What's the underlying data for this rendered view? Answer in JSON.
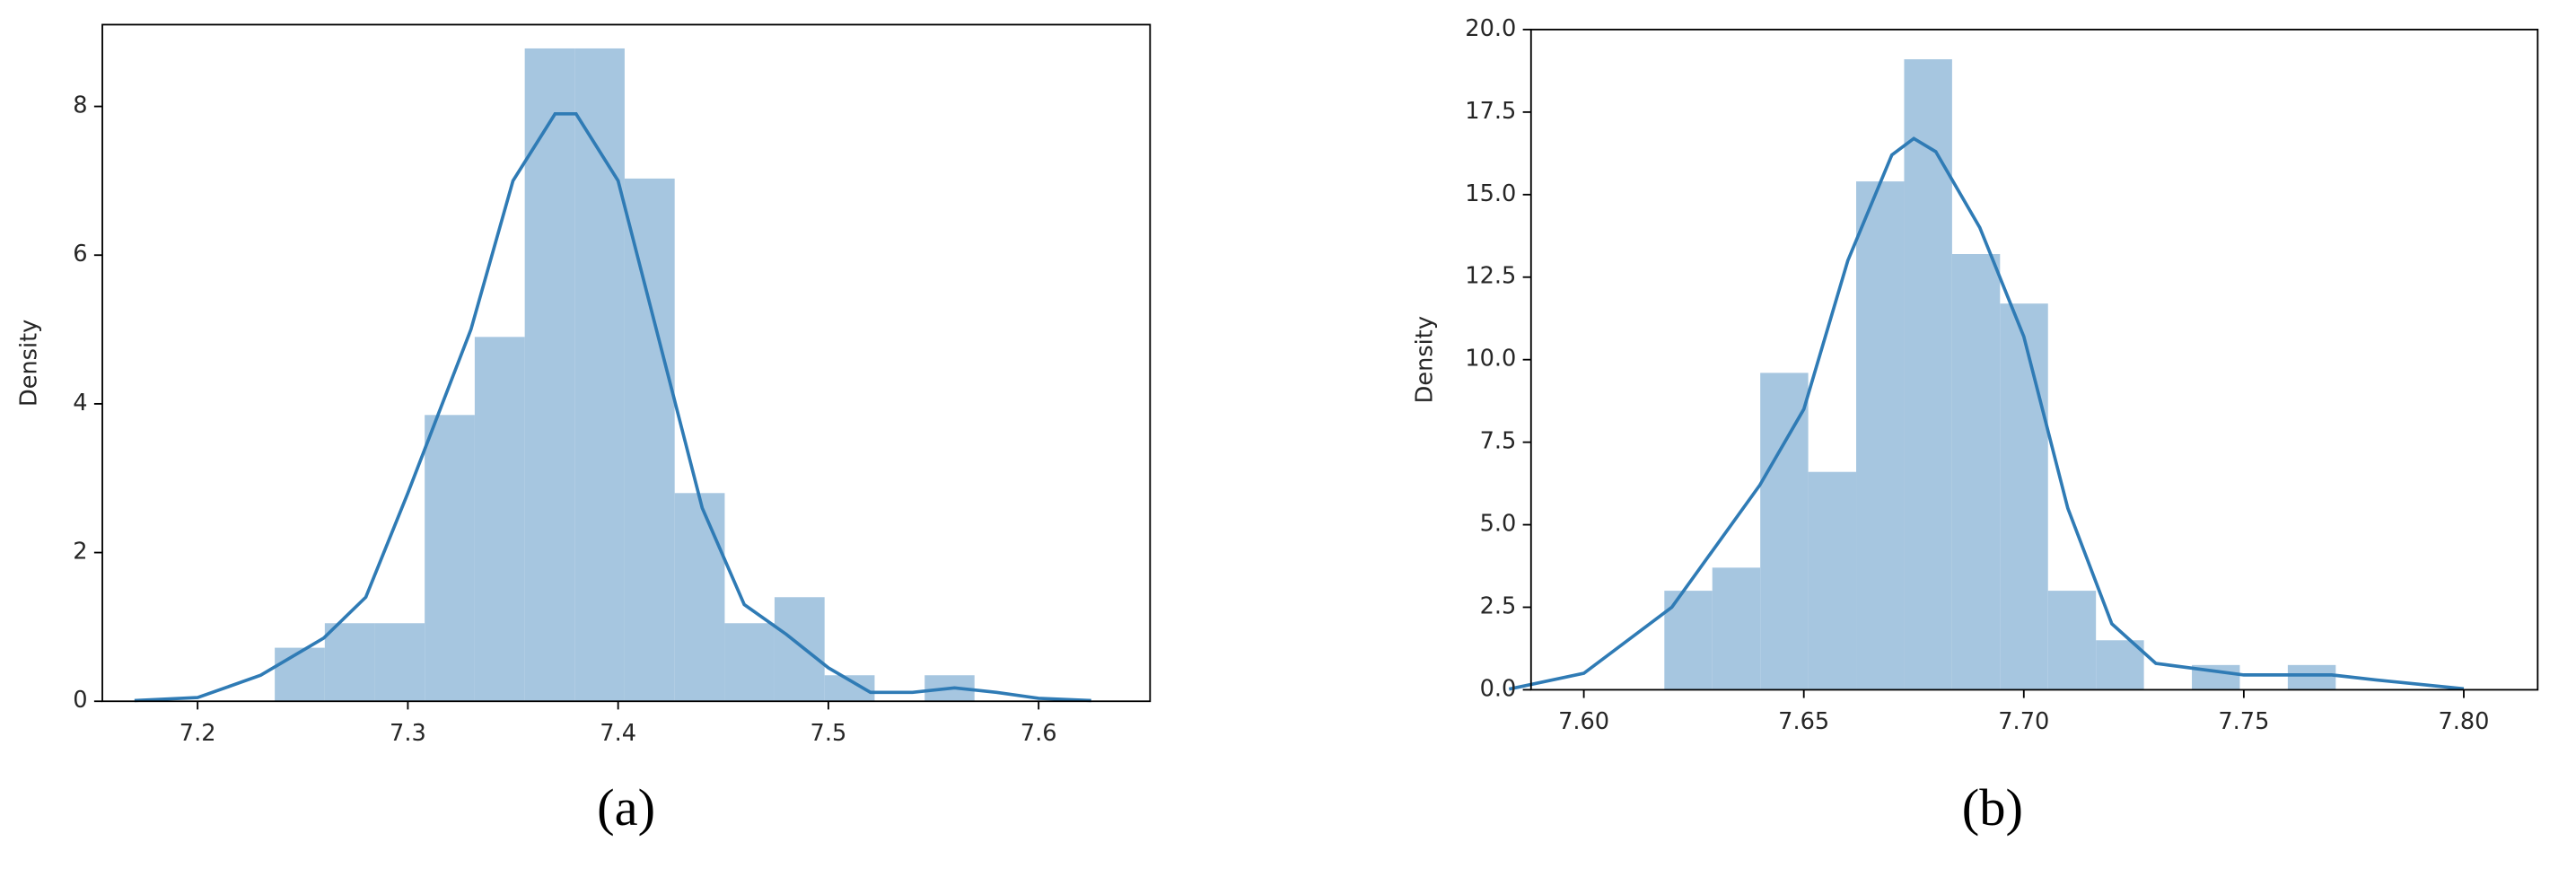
{
  "chart_data": [
    {
      "type": "histogram",
      "y_label": "Density",
      "caption": "(a)",
      "bins": [
        7.2367,
        7.2605,
        7.2842,
        7.308,
        7.3318,
        7.3556,
        7.3793,
        7.4031,
        7.4269,
        7.4507,
        7.4744,
        7.4982,
        7.522,
        7.5458,
        7.5695
      ],
      "values": [
        0.72,
        1.05,
        1.05,
        3.85,
        4.9,
        8.78,
        8.78,
        7.03,
        2.8,
        1.05,
        1.4,
        0.35,
        0,
        0.35
      ],
      "color": "#a6c6e0",
      "kde": {
        "x": [
          7.17,
          7.2,
          7.23,
          7.26,
          7.28,
          7.3,
          7.33,
          7.35,
          7.37,
          7.38,
          7.4,
          7.42,
          7.44,
          7.46,
          7.48,
          7.5,
          7.52,
          7.54,
          7.56,
          7.58,
          7.6,
          7.625
        ],
        "values": [
          0.01,
          0.05,
          0.35,
          0.85,
          1.4,
          2.8,
          5.0,
          7.0,
          7.9,
          7.9,
          7.0,
          4.8,
          2.6,
          1.3,
          0.9,
          0.45,
          0.12,
          0.12,
          0.18,
          0.12,
          0.04,
          0.01
        ],
        "color": "#2f7bb5"
      },
      "xlim": [
        7.1547,
        7.653
      ],
      "ylim": [
        0,
        9.1
      ],
      "xticks": [
        7.2,
        7.3,
        7.4,
        7.5,
        7.6
      ],
      "yticks": [
        0,
        2,
        4,
        6,
        8
      ]
    },
    {
      "type": "histogram",
      "y_label": "Density",
      "caption": "(b)",
      "bins": [
        7.6183,
        7.6292,
        7.6401,
        7.651,
        7.6619,
        7.6728,
        7.6837,
        7.6946,
        7.7055,
        7.7164,
        7.7273,
        7.7382,
        7.7491,
        7.76,
        7.7709
      ],
      "values": [
        3.0,
        3.7,
        9.6,
        6.6,
        15.4,
        19.1,
        13.2,
        11.7,
        3.0,
        1.5,
        0,
        0.75,
        0,
        0.75
      ],
      "color": "#a6c6e0",
      "kde": {
        "x": [
          7.583,
          7.6,
          7.62,
          7.64,
          7.65,
          7.66,
          7.67,
          7.675,
          7.68,
          7.69,
          7.7,
          7.71,
          7.72,
          7.73,
          7.75,
          7.77,
          7.78,
          7.8
        ],
        "values": [
          0.02,
          0.5,
          2.5,
          6.2,
          8.5,
          13.0,
          16.2,
          16.7,
          16.3,
          14.0,
          10.7,
          5.5,
          2.0,
          0.8,
          0.45,
          0.45,
          0.3,
          0.03
        ],
        "color": "#2f7bb5"
      },
      "xlim": [
        7.588,
        7.8168
      ],
      "ylim": [
        0,
        20
      ],
      "xticks": [
        {
          "value": 7.6,
          "label": "7.60"
        },
        {
          "value": 7.65,
          "label": "7.65"
        },
        {
          "value": 7.7,
          "label": "7.70"
        },
        {
          "value": 7.75,
          "label": "7.75"
        },
        {
          "value": 7.8,
          "label": "7.80"
        }
      ],
      "yticks": [
        {
          "value": 0,
          "label": "0.0"
        },
        2.5,
        {
          "value": 5,
          "label": "5.0"
        },
        7.5,
        {
          "value": 10,
          "label": "10.0"
        },
        12.5,
        {
          "value": 15,
          "label": "15.0"
        },
        17.5,
        {
          "value": 20,
          "label": "20.0"
        }
      ]
    }
  ]
}
